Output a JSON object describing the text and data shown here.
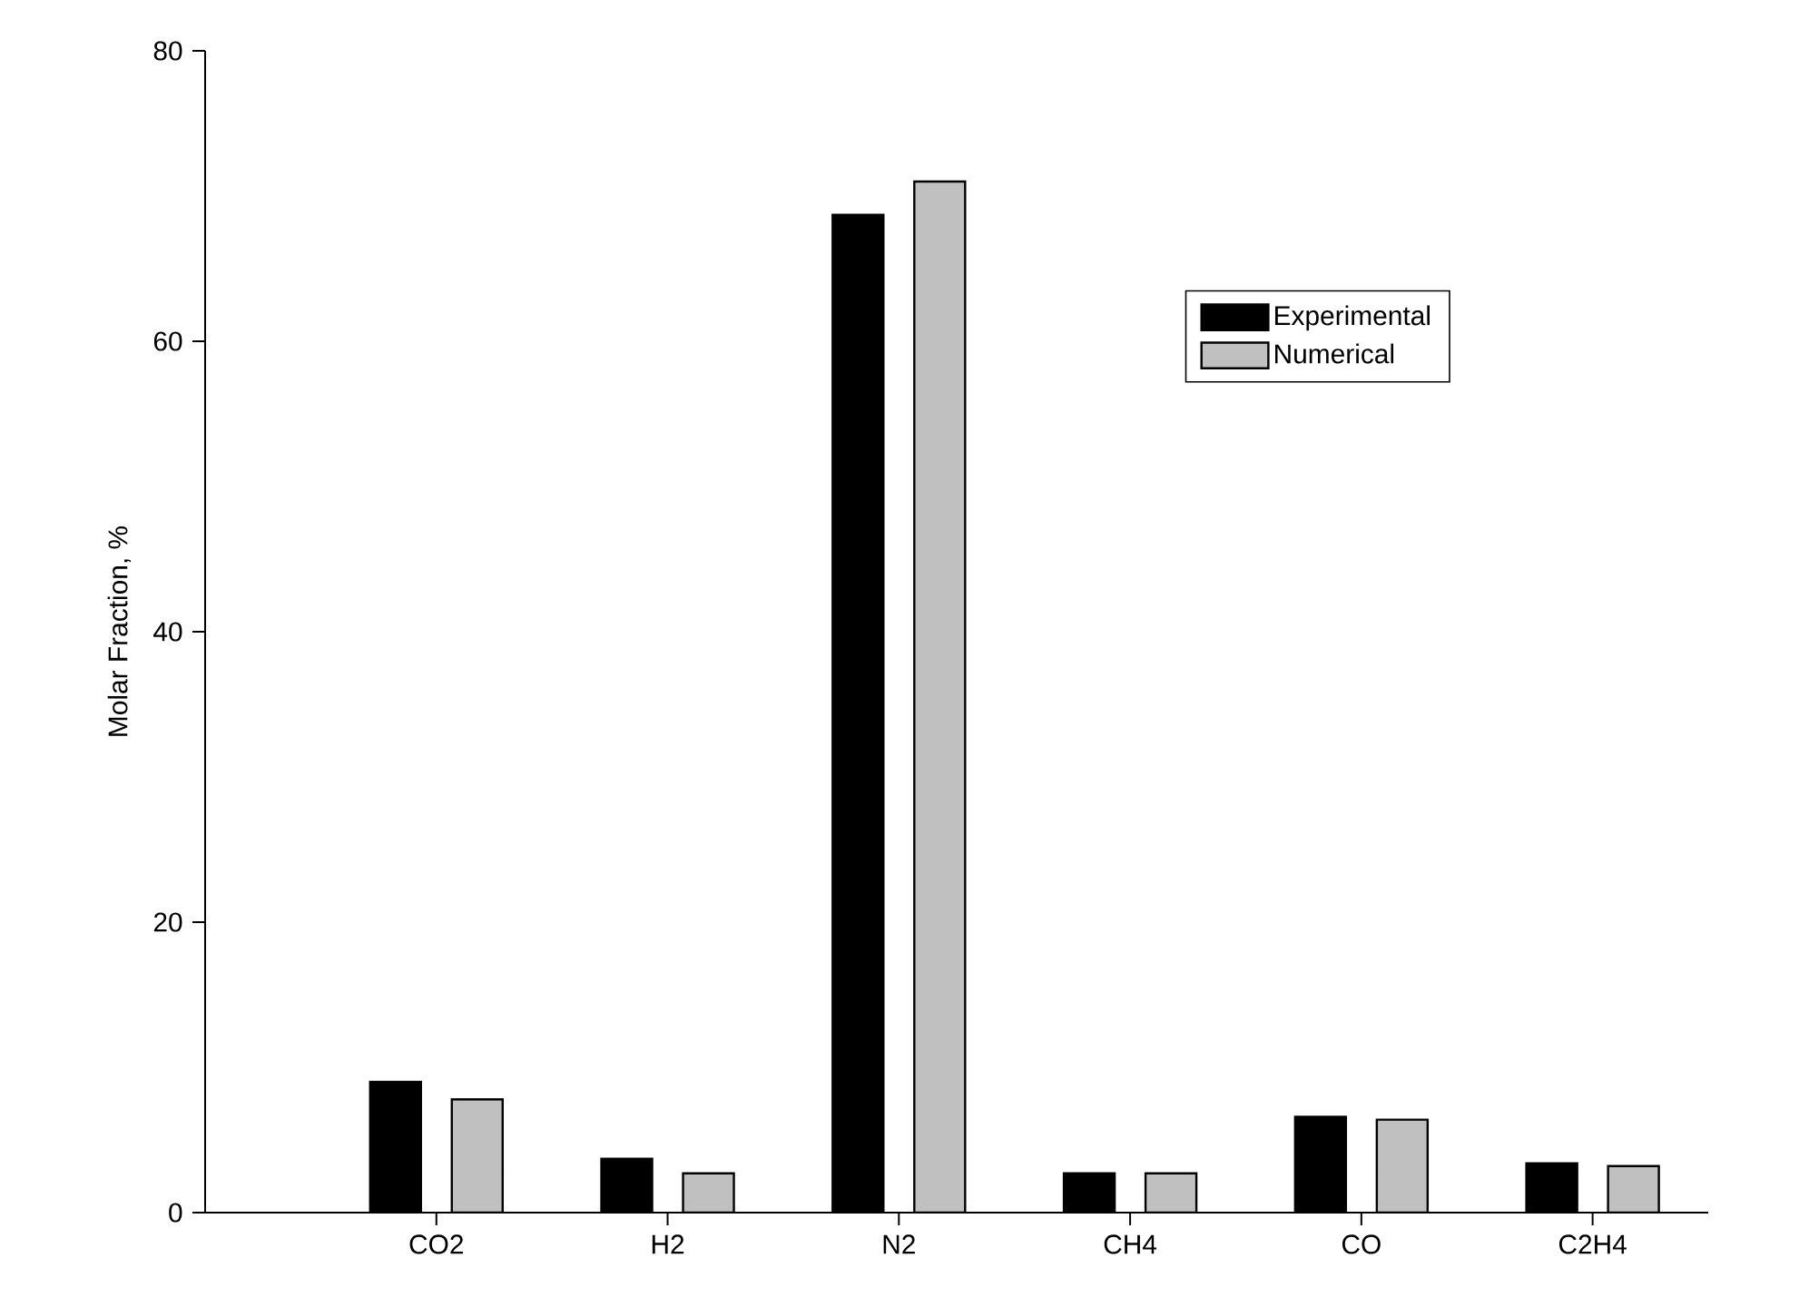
{
  "chart_data": {
    "type": "bar",
    "ylabel": "Molar Fraction, %",
    "categories": [
      "CO2",
      "H2",
      "N2",
      "CH4",
      "CO",
      "C2H4"
    ],
    "series": [
      {
        "name": "Experimental",
        "color": "#000000",
        "values": [
          9.0,
          3.7,
          68.7,
          2.7,
          6.6,
          3.4
        ]
      },
      {
        "name": "Numerical",
        "color": "#c0c0c0",
        "values": [
          7.8,
          2.7,
          71.0,
          2.7,
          6.4,
          3.2
        ]
      }
    ],
    "ylim": [
      0,
      80
    ],
    "yticks": [
      0,
      20,
      40,
      60,
      80
    ],
    "grid": false,
    "legend": "top right"
  }
}
